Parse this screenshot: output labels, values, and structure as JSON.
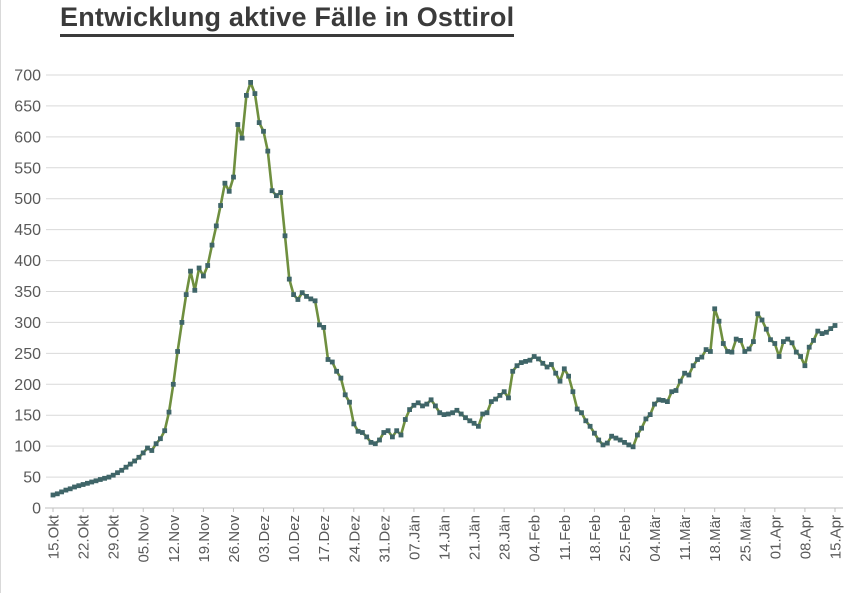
{
  "title": "Entwicklung aktive Fälle in Osttirol",
  "colors": {
    "line": "#6f8f3f",
    "marker": "#3f6568",
    "grid": "#d9d9d9",
    "axis": "#bfbfbf",
    "title_text": "#3b3b3b",
    "tick_text": "#595959",
    "background": "#ffffff"
  },
  "chart_data": {
    "type": "line",
    "title": "Entwicklung aktive Fälle in Osttirol",
    "xlabel": "",
    "ylabel": "",
    "ylim": [
      0,
      700
    ],
    "y_ticks": [
      0,
      50,
      100,
      150,
      200,
      250,
      300,
      350,
      400,
      450,
      500,
      550,
      600,
      650,
      700
    ],
    "grid": true,
    "legend": false,
    "marker_shape": "square",
    "frequency": "daily",
    "x_range": "15.Okt – 15.Apr",
    "x_tick_labels": [
      "15.Okt",
      "22.Okt",
      "29.Okt",
      "05.Nov",
      "12.Nov",
      "19.Nov",
      "26.Nov",
      "03.Dez",
      "10.Dez",
      "17.Dez",
      "24.Dez",
      "31.Dez",
      "07.Jän",
      "14.Jän",
      "21.Jän",
      "28.Jän",
      "04.Feb",
      "11.Feb",
      "18.Feb",
      "25.Feb",
      "04.Mär",
      "11.Mär",
      "18.Mär",
      "25.Mär",
      "01.Apr",
      "08.Apr",
      "15.Apr"
    ],
    "values": [
      21,
      23,
      26,
      29,
      31,
      34,
      36,
      38,
      40,
      42,
      44,
      46,
      48,
      50,
      53,
      57,
      61,
      66,
      71,
      76,
      82,
      89,
      97,
      93,
      104,
      112,
      125,
      155,
      200,
      253,
      300,
      345,
      383,
      352,
      388,
      375,
      392,
      425,
      456,
      489,
      525,
      512,
      535,
      620,
      598,
      667,
      688,
      670,
      623,
      609,
      577,
      513,
      505,
      510,
      440,
      370,
      345,
      337,
      348,
      342,
      338,
      335,
      296,
      292,
      240,
      236,
      221,
      210,
      183,
      171,
      136,
      124,
      122,
      115,
      106,
      104,
      110,
      122,
      125,
      115,
      125,
      118,
      143,
      159,
      166,
      170,
      165,
      168,
      175,
      165,
      154,
      151,
      152,
      154,
      158,
      152,
      146,
      141,
      137,
      132,
      152,
      154,
      172,
      176,
      182,
      188,
      178,
      221,
      230,
      235,
      237,
      239,
      245,
      241,
      234,
      228,
      232,
      218,
      205,
      225,
      213,
      188,
      160,
      154,
      141,
      132,
      121,
      110,
      102,
      105,
      116,
      113,
      110,
      106,
      102,
      99,
      118,
      129,
      144,
      151,
      168,
      175,
      174,
      172,
      188,
      190,
      205,
      218,
      215,
      230,
      240,
      244,
      256,
      253,
      322,
      302,
      266,
      253,
      252,
      273,
      271,
      253,
      257,
      269,
      314,
      304,
      289,
      272,
      266,
      245,
      269,
      273,
      267,
      252,
      245,
      230,
      260,
      271,
      286,
      282,
      284,
      290,
      295
    ]
  }
}
